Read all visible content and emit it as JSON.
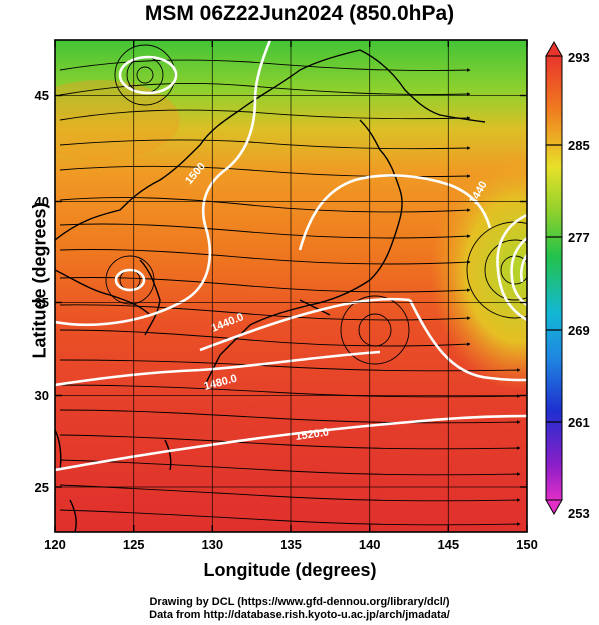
{
  "title": "MSM 06Z22Jun2024 (850.0hPa)",
  "xlabel": "Longitude (degrees)",
  "ylabel": "Latitude  (degrees)",
  "x_ticks": [
    "120",
    "125",
    "130",
    "135",
    "140",
    "145",
    "150"
  ],
  "y_ticks": [
    "25",
    "30",
    "35",
    "40",
    "45"
  ],
  "colorbar": {
    "ticks": [
      "293",
      "285",
      "277",
      "269",
      "261",
      "253"
    ],
    "vmin": 253,
    "vmax": 293
  },
  "contour_labels": [
    "1500",
    "1440.0",
    "1480.0",
    "1520.0",
    "1440"
  ],
  "credits": [
    "Drawing by DCL (https://www.gfd-dennou.org/library/dcl/)",
    "Data from http://database.rish.kyoto-u.ac.jp/arch/jmadata/"
  ],
  "chart_data": {
    "type": "heatmap",
    "title": "MSM 06Z22Jun2024 (850.0hPa)",
    "xlabel": "Longitude (degrees)",
    "ylabel": "Latitude  (degrees)",
    "xlim": [
      120,
      150
    ],
    "ylim": [
      22.5,
      47.5
    ],
    "x_ticks": [
      120,
      125,
      130,
      135,
      140,
      145,
      150
    ],
    "y_ticks": [
      25,
      30,
      35,
      40,
      45
    ],
    "colorbar_range": [
      253,
      293
    ],
    "colorbar_ticks": [
      293,
      285,
      277,
      269,
      261,
      253
    ],
    "grid": true,
    "contour_labels": [
      "1500",
      "1440.0",
      "1480.0",
      "1520.0",
      "1440"
    ]
  },
  "colors": {
    "green": "#39c93a",
    "yellow": "#d7e02a",
    "orange": "#ef7a1d",
    "red": "#e7392d",
    "deep_red": "#dd2b2b"
  }
}
